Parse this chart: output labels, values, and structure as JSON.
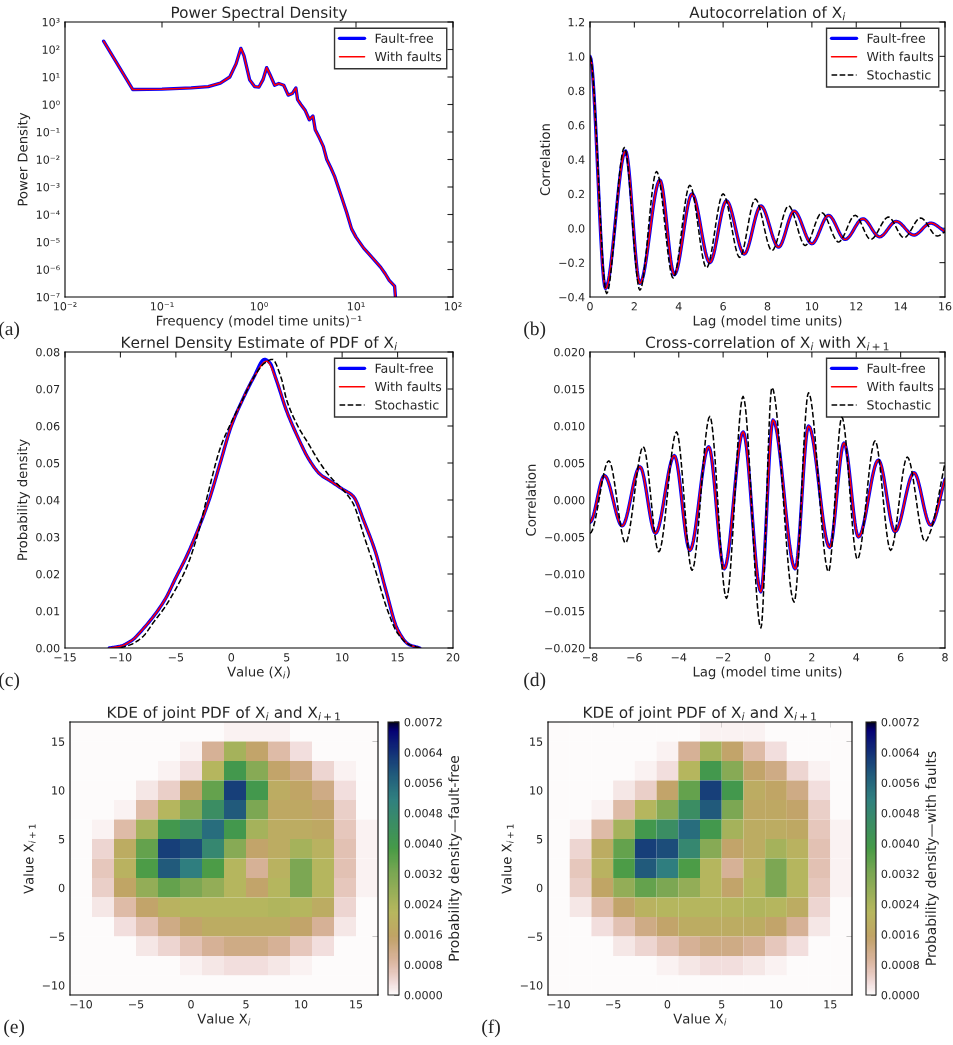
{
  "chart_data": [
    {
      "type": "line",
      "title": "Power Spectral Density",
      "xlabel": "Frequency (model time units)⁻¹",
      "ylabel": "Power Density",
      "log": "xy",
      "xlim": [
        0.01,
        100
      ],
      "ylim": [
        1e-07,
        1000
      ],
      "xticks": [
        {
          "value": 0.01,
          "label": "10⁻²"
        },
        {
          "value": 0.1,
          "label": "10⁻¹"
        },
        {
          "value": 1,
          "label": "10⁰"
        },
        {
          "value": 10,
          "label": "10¹"
        },
        {
          "value": 100,
          "label": "10²"
        }
      ],
      "yticks": [
        {
          "value": 1e-07,
          "label": "10⁻⁷"
        },
        {
          "value": 1e-06,
          "label": "10⁻⁶"
        },
        {
          "value": 1e-05,
          "label": "10⁻⁵"
        },
        {
          "value": 0.0001,
          "label": "10⁻⁴"
        },
        {
          "value": 0.001,
          "label": "10⁻³"
        },
        {
          "value": 0.01,
          "label": "10⁻²"
        },
        {
          "value": 0.1,
          "label": "10⁻¹"
        },
        {
          "value": 1,
          "label": "10⁰"
        },
        {
          "value": 10,
          "label": "10¹"
        },
        {
          "value": 100,
          "label": "10²"
        },
        {
          "value": 1000,
          "label": "10³"
        }
      ],
      "x": [
        0.025,
        0.05,
        0.1,
        0.2,
        0.3,
        0.4,
        0.5,
        0.58,
        0.65,
        0.7,
        0.8,
        0.9,
        1.0,
        1.1,
        1.2,
        1.3,
        1.45,
        1.6,
        1.8,
        2.0,
        2.2,
        2.4,
        2.5,
        2.7,
        3.0,
        3.3,
        3.6,
        3.8,
        4.2,
        4.6,
        5,
        5.5,
        6,
        7,
        8,
        9,
        10,
        12,
        15,
        18,
        20,
        22,
        25,
        25.5
      ],
      "series": [
        {
          "name": "Fault-free",
          "color": "#0000ff",
          "values": [
            200,
            3.5,
            3.6,
            4,
            4.5,
            6,
            10,
            30,
            110,
            60,
            8,
            4.5,
            4.3,
            8,
            22,
            12,
            5,
            5.8,
            5,
            2.2,
            2.5,
            4.0,
            1.5,
            1.0,
            0.6,
            0.28,
            0.38,
            0.12,
            0.06,
            0.03,
            0.01,
            0.005,
            0.0025,
            0.0005,
            0.00012,
            3e-05,
            1.5e-05,
            6e-06,
            2.5e-06,
            1.2e-06,
            7e-07,
            4e-07,
            2.5e-07,
            1e-07
          ]
        },
        {
          "name": "With faults",
          "color": "#ff0000",
          "values": [
            200,
            3.5,
            3.6,
            4,
            4.5,
            6,
            10,
            30,
            110,
            60,
            8,
            4.5,
            4.3,
            8,
            22,
            12,
            5,
            5.8,
            5,
            2.2,
            2.5,
            4.0,
            1.5,
            1.0,
            0.6,
            0.28,
            0.38,
            0.12,
            0.06,
            0.03,
            0.01,
            0.005,
            0.0025,
            0.0005,
            0.00012,
            3e-05,
            1.5e-05,
            6e-06,
            2.5e-06,
            1.2e-06,
            7e-07,
            4e-07,
            2.5e-07,
            1e-07
          ]
        }
      ],
      "legend": "top right",
      "annotations": [
        "(a)"
      ]
    },
    {
      "type": "line",
      "title": "Autocorrelation of X$_{i}$",
      "xlabel": "Lag (model time units)",
      "ylabel": "Correlation",
      "xlim": [
        0,
        16
      ],
      "ylim": [
        -0.4,
        1.2
      ],
      "xticks": [
        0,
        2,
        4,
        6,
        8,
        10,
        12,
        14,
        16
      ],
      "yticks": [
        {
          "value": -0.4,
          "label": "−0.4"
        },
        {
          "value": -0.2,
          "label": "−0.2"
        },
        {
          "value": 0,
          "label": "0.0"
        },
        0.2,
        0.4,
        0.6,
        0.8,
        {
          "value": 1,
          "label": "1.0"
        },
        1.2
      ],
      "series": [
        {
          "name": "Fault-free",
          "color": "#0000ff",
          "x": [
            0,
            0.7,
            1.6,
            2.25,
            3.15,
            3.8,
            4.6,
            5.4,
            6.15,
            6.95,
            7.7,
            8.5,
            9.2,
            10.0,
            10.75,
            11.5,
            12.3,
            13.05,
            13.8,
            14.6,
            15.35,
            16
          ],
          "values": [
            1.0,
            -0.35,
            0.45,
            -0.32,
            0.28,
            -0.27,
            0.2,
            -0.2,
            0.16,
            -0.15,
            0.13,
            -0.11,
            0.1,
            -0.09,
            0.075,
            -0.065,
            0.055,
            -0.05,
            0.04,
            -0.04,
            0.03,
            -0.02
          ]
        },
        {
          "name": "With faults",
          "color": "#ff0000",
          "x": [
            0,
            0.7,
            1.6,
            2.25,
            3.15,
            3.8,
            4.6,
            5.4,
            6.15,
            6.95,
            7.7,
            8.5,
            9.2,
            10.0,
            10.75,
            11.5,
            12.3,
            13.05,
            13.8,
            14.6,
            15.35,
            16
          ],
          "values": [
            1.0,
            -0.35,
            0.45,
            -0.32,
            0.28,
            -0.27,
            0.2,
            -0.2,
            0.16,
            -0.15,
            0.13,
            -0.11,
            0.1,
            -0.09,
            0.075,
            -0.065,
            0.055,
            -0.05,
            0.04,
            -0.04,
            0.03,
            -0.02
          ]
        },
        {
          "name": "Stochastic",
          "color": "#000000",
          "line_style": "dashed",
          "x": [
            0,
            0.75,
            1.55,
            2.25,
            3.0,
            3.75,
            4.5,
            5.25,
            6.0,
            6.75,
            7.45,
            8.2,
            8.95,
            9.7,
            10.45,
            11.2,
            11.95,
            12.65,
            13.45,
            14.15,
            14.9,
            15.65,
            16
          ],
          "values": [
            1.0,
            -0.38,
            0.47,
            -0.36,
            0.33,
            -0.29,
            0.25,
            -0.23,
            0.2,
            -0.17,
            0.17,
            -0.13,
            0.13,
            -0.1,
            0.09,
            -0.08,
            0.075,
            -0.065,
            0.065,
            -0.055,
            0.06,
            -0.045,
            -0.02
          ]
        }
      ],
      "legend": "top right",
      "annotations": [
        "(b)"
      ]
    },
    {
      "type": "line",
      "title": "Kernel Density Estimate of PDF of X$_{i}$",
      "xlabel": "Value (X$_{i}$)",
      "ylabel": "Probability density",
      "xlim": [
        -15,
        20
      ],
      "ylim": [
        0,
        0.08
      ],
      "xticks": [
        {
          "value": -15,
          "label": "−15"
        },
        {
          "value": -10,
          "label": "−10"
        },
        {
          "value": -5,
          "label": "−5"
        },
        0,
        5,
        10,
        15,
        20
      ],
      "yticks": [
        {
          "value": 0,
          "label": "0.00"
        },
        0.01,
        0.02,
        0.03,
        0.04,
        0.05,
        0.06,
        0.07,
        0.08
      ],
      "series": [
        {
          "name": "Fault-free",
          "color": "#0000ff",
          "x": [
            -11,
            -10,
            -9,
            -8,
            -6,
            -5,
            -4,
            -3,
            -2,
            -1,
            0,
            1,
            2,
            3,
            3.5,
            4,
            5,
            6,
            7,
            8,
            9,
            10,
            11,
            12,
            13,
            14,
            15,
            16,
            17
          ],
          "values": [
            0,
            0.0005,
            0.002,
            0.005,
            0.013,
            0.019,
            0.025,
            0.032,
            0.04,
            0.05,
            0.06,
            0.067,
            0.073,
            0.078,
            0.077,
            0.073,
            0.064,
            0.057,
            0.051,
            0.047,
            0.045,
            0.043,
            0.041,
            0.034,
            0.026,
            0.015,
            0.005,
            0.001,
            0
          ]
        },
        {
          "name": "With faults",
          "color": "#ff0000",
          "x": [
            -11,
            -10,
            -9,
            -8,
            -6,
            -5,
            -4,
            -3,
            -2,
            -1,
            0,
            1,
            2,
            3.2,
            4,
            5,
            6,
            7,
            8,
            9,
            10,
            11,
            12,
            13,
            14,
            15,
            16,
            17
          ],
          "values": [
            0,
            0.0005,
            0.002,
            0.005,
            0.013,
            0.019,
            0.025,
            0.032,
            0.04,
            0.05,
            0.06,
            0.067,
            0.073,
            0.0775,
            0.073,
            0.064,
            0.057,
            0.051,
            0.047,
            0.045,
            0.043,
            0.041,
            0.034,
            0.026,
            0.015,
            0.005,
            0.001,
            0
          ]
        },
        {
          "name": "Stochastic",
          "color": "#000000",
          "line_style": "dashed",
          "x": [
            -10,
            -9,
            -8,
            -7,
            -6,
            -5,
            -4,
            -3,
            -2,
            -1,
            0,
            1,
            2,
            3,
            3.7,
            4.5,
            5,
            6,
            7,
            8,
            9,
            10,
            11,
            12,
            13,
            14,
            15,
            16,
            17
          ],
          "values": [
            0,
            0.001,
            0.003,
            0.007,
            0.011,
            0.016,
            0.022,
            0.031,
            0.043,
            0.054,
            0.061,
            0.067,
            0.073,
            0.077,
            0.078,
            0.073,
            0.067,
            0.06,
            0.055,
            0.05,
            0.046,
            0.043,
            0.039,
            0.03,
            0.021,
            0.011,
            0.004,
            0.001,
            0
          ]
        }
      ],
      "legend": "top right",
      "annotations": [
        "(c)"
      ]
    },
    {
      "type": "line",
      "title": "Cross-correlation of X$_{i}$ with X$_{i+1}$",
      "xlabel": "Lag (model time units)",
      "ylabel": "Correlation",
      "xlim": [
        -8,
        8
      ],
      "ylim": [
        -0.02,
        0.02
      ],
      "xticks": [
        {
          "value": -8,
          "label": "−8"
        },
        {
          "value": -6,
          "label": "−6"
        },
        {
          "value": -4,
          "label": "−4"
        },
        {
          "value": -2,
          "label": "−2"
        },
        0,
        2,
        4,
        6,
        8
      ],
      "yticks": [
        {
          "value": -0.02,
          "label": "−0.020"
        },
        {
          "value": -0.015,
          "label": "−0.015"
        },
        {
          "value": -0.01,
          "label": "−0.010"
        },
        {
          "value": -0.005,
          "label": "−0.005"
        },
        {
          "value": 0,
          "label": "0.000"
        },
        0.005,
        {
          "value": 0.01,
          "label": "0.010"
        },
        0.015,
        {
          "value": 0.02,
          "label": "0.020"
        }
      ],
      "series": [
        {
          "name": "Fault-free",
          "color": "#0000ff",
          "x": [
            -8,
            -7.35,
            -6.55,
            -5.75,
            -5.05,
            -4.2,
            -3.5,
            -2.65,
            -1.95,
            -1.1,
            -0.3,
            0.25,
            1.25,
            1.85,
            2.8,
            3.45,
            4.1,
            5.0,
            5.75,
            6.6,
            7.35,
            8
          ],
          "values": [
            -0.003,
            0.0033,
            -0.0035,
            0.0045,
            -0.0045,
            0.006,
            -0.0068,
            0.0072,
            -0.0093,
            0.0092,
            -0.0124,
            0.0108,
            -0.0093,
            0.01,
            -0.0064,
            0.0077,
            -0.005,
            0.0054,
            -0.0043,
            0.0037,
            -0.0034,
            0.0028
          ]
        },
        {
          "name": "With faults",
          "color": "#ff0000",
          "x": [
            -8,
            -7.35,
            -6.55,
            -5.75,
            -5.05,
            -4.2,
            -3.5,
            -2.65,
            -1.95,
            -1.1,
            -0.3,
            0.25,
            1.25,
            1.85,
            2.8,
            3.45,
            4.1,
            5.0,
            5.75,
            6.6,
            7.35,
            8
          ],
          "values": [
            -0.003,
            0.0033,
            -0.0035,
            0.0045,
            -0.0045,
            0.006,
            -0.0068,
            0.0072,
            -0.0093,
            0.0092,
            -0.0124,
            0.0108,
            -0.0093,
            0.01,
            -0.0064,
            0.0077,
            -0.005,
            0.0054,
            -0.0043,
            0.0037,
            -0.0034,
            0.0028
          ]
        },
        {
          "name": "Stochastic",
          "color": "#000000",
          "line_style": "dashed",
          "x": [
            -8,
            -7.15,
            -6.4,
            -5.6,
            -4.9,
            -4.1,
            -3.4,
            -2.6,
            -1.85,
            -1.1,
            -0.3,
            0.2,
            1.2,
            1.85,
            2.75,
            3.35,
            4.05,
            4.85,
            5.55,
            6.3,
            7.1,
            7.325,
            8
          ],
          "values": [
            -0.0045,
            0.0053,
            -0.0058,
            0.0072,
            -0.007,
            0.0092,
            -0.0095,
            0.0113,
            -0.0133,
            0.014,
            -0.0173,
            0.0152,
            -0.0138,
            0.0145,
            -0.0097,
            0.0112,
            -0.008,
            0.008,
            -0.0068,
            0.0058,
            -0.0056,
            -0.0044,
            0.005
          ]
        }
      ],
      "legend": "top right",
      "annotations": [
        "(d)"
      ]
    },
    {
      "type": "heatmap",
      "title": "KDE of joint PDF of X$_{i}$ and X$_{i+1}$",
      "xlabel": "Value X$_{i}$",
      "ylabel": "Value X$_{i+1}$",
      "clabel": "Probability density—fault-free",
      "xlim": [
        -11,
        17
      ],
      "ylim": [
        -11,
        17
      ],
      "xticks": [
        {
          "value": -10,
          "label": "−10"
        },
        {
          "value": -5,
          "label": "−5"
        },
        0,
        5,
        10,
        15
      ],
      "yticks": [
        {
          "value": -10,
          "label": "−10"
        },
        {
          "value": -5,
          "label": "−5"
        },
        0,
        5,
        10,
        15
      ],
      "cells": [
        [
          0,
          0,
          0,
          0,
          0,
          0,
          0,
          0.0001,
          0.0001,
          0.0001,
          0,
          0,
          0,
          0
        ],
        [
          0,
          0,
          0,
          0,
          0,
          0.0001,
          0.001,
          0.0025,
          0.0015,
          0.0008,
          0.0003,
          0,
          0,
          0
        ],
        [
          0,
          0,
          0,
          0,
          0.0001,
          0.0003,
          0.0022,
          0.004,
          0.003,
          0.0015,
          0.0012,
          0.0004,
          0.0001,
          0
        ],
        [
          0,
          0,
          0,
          0.0002,
          0.0005,
          0.0015,
          0.0035,
          0.0062,
          0.004,
          0.0018,
          0.0016,
          0.0012,
          0.0003,
          0
        ],
        [
          0,
          0,
          0.0001,
          0.0008,
          0.0022,
          0.003,
          0.0045,
          0.0058,
          0.0032,
          0.0017,
          0.0017,
          0.0015,
          0.0005,
          0
        ],
        [
          0,
          0.0001,
          0.0008,
          0.0025,
          0.004,
          0.0045,
          0.0055,
          0.004,
          0.0025,
          0.0018,
          0.0018,
          0.0017,
          0.0006,
          0.0001
        ],
        [
          0,
          0.0004,
          0.0018,
          0.0035,
          0.0062,
          0.006,
          0.0048,
          0.003,
          0.0015,
          0.0018,
          0.0025,
          0.002,
          0.0007,
          0.0001
        ],
        [
          0,
          0.0006,
          0.002,
          0.0038,
          0.0058,
          0.0052,
          0.0038,
          0.0022,
          0.001,
          0.002,
          0.0032,
          0.0022,
          0.0007,
          0.0001
        ],
        [
          0,
          0.0005,
          0.0016,
          0.0028,
          0.0035,
          0.0032,
          0.0028,
          0.0022,
          0.0015,
          0.0022,
          0.0032,
          0.0022,
          0.0006,
          0.0001
        ],
        [
          0,
          0.0002,
          0.0008,
          0.0015,
          0.002,
          0.0022,
          0.0022,
          0.0022,
          0.0022,
          0.0023,
          0.0022,
          0.0018,
          0.0004,
          0
        ],
        [
          0,
          0,
          0.0003,
          0.0007,
          0.0012,
          0.0015,
          0.0018,
          0.0018,
          0.0018,
          0.0018,
          0.0015,
          0.001,
          0.0002,
          0
        ],
        [
          0,
          0,
          0,
          0.0002,
          0.0004,
          0.0007,
          0.001,
          0.0012,
          0.0012,
          0.001,
          0.0006,
          0.0003,
          0,
          0
        ],
        [
          0,
          0,
          0,
          0,
          0,
          0.0001,
          0.0002,
          0.0003,
          0.0003,
          0.0002,
          0.0001,
          0,
          0,
          0
        ],
        [
          0,
          0,
          0,
          0,
          0,
          0,
          0,
          0,
          0,
          0,
          0,
          0,
          0,
          0
        ]
      ],
      "clim": [
        0,
        0.0072
      ],
      "cticks": [
        {
          "value": 0,
          "label": "0.0000"
        },
        {
          "value": 0.0008,
          "label": "0.0008"
        },
        {
          "value": 0.0016,
          "label": "0.0016"
        },
        {
          "value": 0.0024,
          "label": "0.0024"
        },
        {
          "value": 0.0032,
          "label": "0.0032"
        },
        {
          "value": 0.004,
          "label": "0.0040"
        },
        {
          "value": 0.0048,
          "label": "0.0048"
        },
        {
          "value": 0.0056,
          "label": "0.0056"
        },
        {
          "value": 0.0064,
          "label": "0.0064"
        },
        {
          "value": 0.0072,
          "label": "0.0072"
        }
      ],
      "annotations": [
        "(e)"
      ]
    },
    {
      "type": "heatmap",
      "title": "KDE of joint PDF of X$_{i}$ and X$_{i+1}$",
      "xlabel": "Value X$_{i}$",
      "ylabel": "Value X$_{i+1}$",
      "clabel": "Probability density—with faults",
      "xlim": [
        -11,
        17
      ],
      "ylim": [
        -11,
        17
      ],
      "xticks": [
        {
          "value": -10,
          "label": "−10"
        },
        {
          "value": -5,
          "label": "−5"
        },
        0,
        5,
        10,
        15
      ],
      "yticks": [
        {
          "value": -10,
          "label": "−10"
        },
        {
          "value": -5,
          "label": "−5"
        },
        0,
        5,
        10,
        15
      ],
      "cells": [
        [
          0,
          0,
          0,
          0,
          0,
          0,
          0,
          0.0001,
          0.0001,
          0.0001,
          0,
          0,
          0,
          0
        ],
        [
          0,
          0,
          0,
          0,
          0,
          0.0001,
          0.001,
          0.0025,
          0.0015,
          0.0008,
          0.0003,
          0,
          0,
          0
        ],
        [
          0,
          0,
          0,
          0,
          0.0001,
          0.0003,
          0.0022,
          0.004,
          0.003,
          0.0015,
          0.0012,
          0.0004,
          0.0001,
          0
        ],
        [
          0,
          0,
          0,
          0.0002,
          0.0005,
          0.0015,
          0.0035,
          0.0062,
          0.004,
          0.0018,
          0.0016,
          0.0012,
          0.0003,
          0
        ],
        [
          0,
          0,
          0.0001,
          0.0008,
          0.0022,
          0.003,
          0.0045,
          0.0058,
          0.0032,
          0.0017,
          0.0017,
          0.0015,
          0.0005,
          0
        ],
        [
          0,
          0.0001,
          0.0008,
          0.0025,
          0.004,
          0.0045,
          0.0055,
          0.004,
          0.0025,
          0.0018,
          0.0018,
          0.0017,
          0.0006,
          0.0001
        ],
        [
          0,
          0.0004,
          0.0018,
          0.0035,
          0.0062,
          0.006,
          0.0048,
          0.003,
          0.0015,
          0.0018,
          0.0025,
          0.002,
          0.0007,
          0.0001
        ],
        [
          0,
          0.0006,
          0.002,
          0.0038,
          0.0058,
          0.0052,
          0.0038,
          0.0022,
          0.001,
          0.002,
          0.0032,
          0.0022,
          0.0007,
          0.0001
        ],
        [
          0,
          0.0005,
          0.0016,
          0.0028,
          0.0035,
          0.0032,
          0.0028,
          0.0022,
          0.0015,
          0.0022,
          0.0032,
          0.0022,
          0.0006,
          0.0001
        ],
        [
          0,
          0.0002,
          0.0008,
          0.0015,
          0.002,
          0.0022,
          0.0022,
          0.0022,
          0.0022,
          0.0023,
          0.0022,
          0.0018,
          0.0004,
          0
        ],
        [
          0,
          0,
          0.0003,
          0.0007,
          0.0012,
          0.0015,
          0.0018,
          0.0018,
          0.0018,
          0.0018,
          0.0015,
          0.001,
          0.0002,
          0
        ],
        [
          0,
          0,
          0,
          0.0002,
          0.0004,
          0.0007,
          0.001,
          0.0012,
          0.0012,
          0.001,
          0.0006,
          0.0003,
          0,
          0
        ],
        [
          0,
          0,
          0,
          0,
          0,
          0.0001,
          0.0002,
          0.0003,
          0.0003,
          0.0002,
          0.0001,
          0,
          0,
          0
        ],
        [
          0,
          0,
          0,
          0,
          0,
          0,
          0,
          0,
          0,
          0,
          0,
          0,
          0,
          0
        ]
      ],
      "clim": [
        0,
        0.0072
      ],
      "cticks": [
        {
          "value": 0,
          "label": "0.0000"
        },
        {
          "value": 0.0008,
          "label": "0.0008"
        },
        {
          "value": 0.0016,
          "label": "0.0016"
        },
        {
          "value": 0.0024,
          "label": "0.0024"
        },
        {
          "value": 0.0032,
          "label": "0.0032"
        },
        {
          "value": 0.004,
          "label": "0.0040"
        },
        {
          "value": 0.0048,
          "label": "0.0048"
        },
        {
          "value": 0.0056,
          "label": "0.0056"
        },
        {
          "value": 0.0064,
          "label": "0.0064"
        },
        {
          "value": 0.0072,
          "label": "0.0072"
        }
      ],
      "annotations": [
        "(f)"
      ]
    }
  ]
}
